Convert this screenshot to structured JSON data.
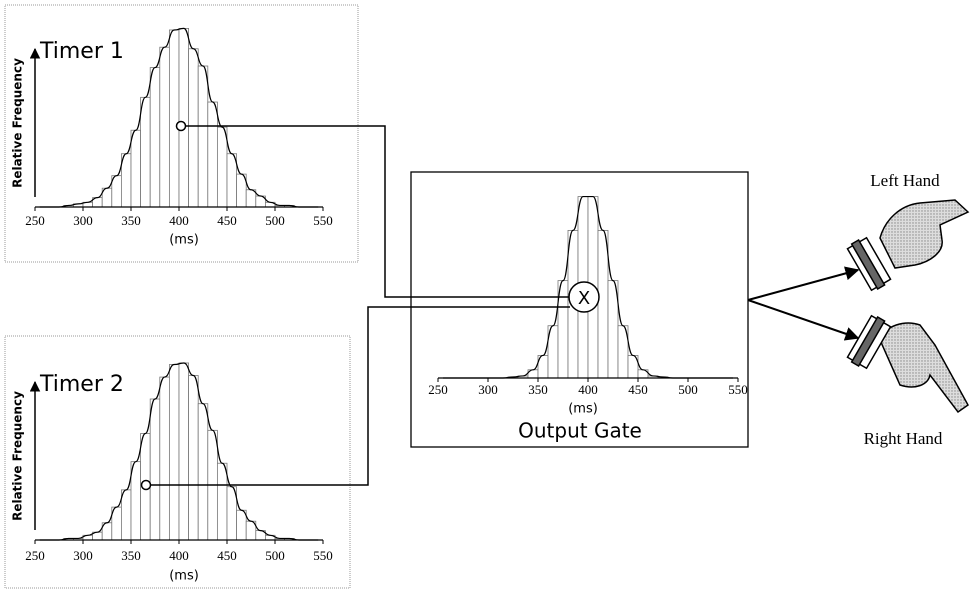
{
  "chart_data": [
    {
      "type": "histogram",
      "title": "Timer 1",
      "ylabel": "Relative Frequency",
      "xlabel": "(ms)",
      "bins": [
        250,
        260,
        270,
        280,
        290,
        300,
        310,
        320,
        330,
        340,
        350,
        360,
        370,
        380,
        390,
        400,
        410,
        420,
        430,
        440,
        450,
        460,
        470,
        480,
        490,
        500,
        510,
        520,
        530,
        540,
        550
      ],
      "counts": [
        0,
        0,
        0,
        0.001,
        0.002,
        0.003,
        0.006,
        0.012,
        0.02,
        0.034,
        0.049,
        0.07,
        0.089,
        0.102,
        0.113,
        0.114,
        0.101,
        0.09,
        0.067,
        0.051,
        0.034,
        0.021,
        0.011,
        0.007,
        0.003,
        0.001,
        0.001,
        0,
        0,
        0
      ],
      "xlim": [
        250,
        550
      ],
      "xticks": [
        250,
        300,
        350,
        400,
        450,
        500,
        550
      ],
      "ylim": [
        0,
        0.12
      ],
      "color": "#ffffff"
    },
    {
      "type": "histogram",
      "title": "Timer 2",
      "ylabel": "Relative Frequency",
      "xlabel": "(ms)",
      "bins": [
        250,
        260,
        270,
        280,
        290,
        300,
        310,
        320,
        330,
        340,
        350,
        360,
        370,
        380,
        390,
        400,
        410,
        420,
        430,
        440,
        450,
        460,
        470,
        480,
        490,
        500,
        510,
        520,
        530,
        540,
        550
      ],
      "counts": [
        0,
        0,
        0,
        0.001,
        0.001,
        0.003,
        0.005,
        0.011,
        0.021,
        0.032,
        0.05,
        0.068,
        0.09,
        0.104,
        0.112,
        0.113,
        0.105,
        0.087,
        0.07,
        0.049,
        0.034,
        0.019,
        0.012,
        0.006,
        0.003,
        0.001,
        0.001,
        0,
        0,
        0
      ],
      "xlim": [
        250,
        550
      ],
      "xticks": [
        250,
        300,
        350,
        400,
        450,
        500,
        550
      ],
      "ylim": [
        0,
        0.12
      ],
      "color": "#ffffff"
    },
    {
      "type": "histogram",
      "title": "Output Gate",
      "xlabel": "(ms)",
      "bins": [
        250,
        260,
        270,
        280,
        290,
        300,
        310,
        320,
        330,
        340,
        350,
        360,
        370,
        380,
        390,
        400,
        410,
        420,
        430,
        440,
        450,
        460,
        470,
        480,
        490,
        500,
        510,
        520,
        530,
        540,
        550
      ],
      "counts": [
        0,
        0,
        0,
        0,
        0,
        0,
        0,
        0.001,
        0.002,
        0.008,
        0.022,
        0.051,
        0.095,
        0.144,
        0.177,
        0.177,
        0.144,
        0.095,
        0.051,
        0.022,
        0.008,
        0.002,
        0.001,
        0,
        0,
        0,
        0,
        0,
        0,
        0
      ],
      "xlim": [
        250,
        550
      ],
      "xticks": [
        250,
        300,
        350,
        400,
        450,
        500,
        550
      ],
      "ylim": [
        0,
        0.2
      ],
      "color": "#ffffff"
    }
  ],
  "labels": {
    "left_hand": "Left Hand",
    "right_hand": "Right Hand"
  }
}
